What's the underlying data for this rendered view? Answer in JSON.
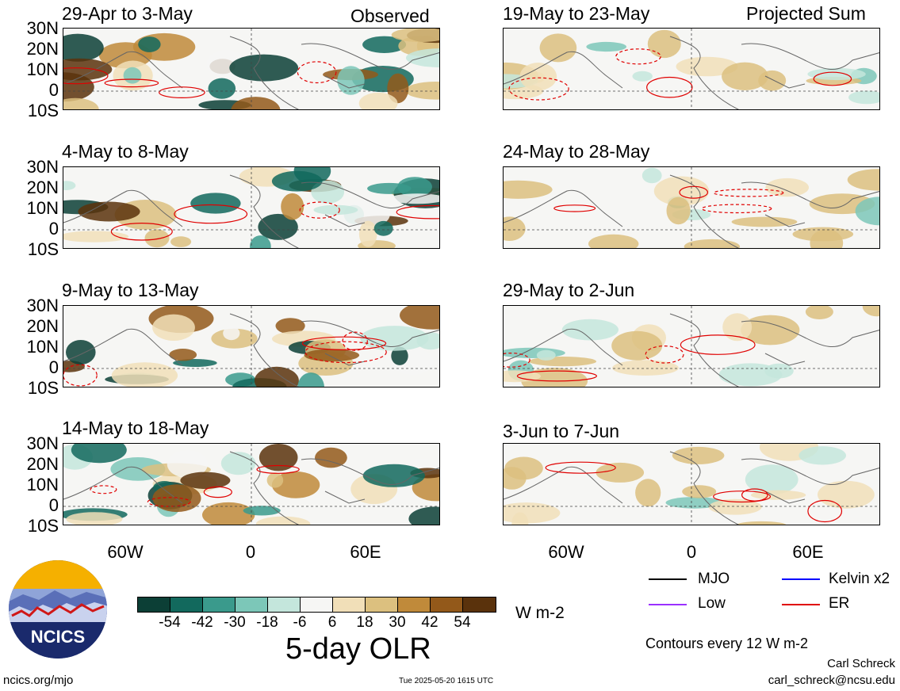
{
  "panels_left": [
    {
      "title": "29-Apr to 3-May",
      "tag": "Observed"
    },
    {
      "title": "4-May to 8-May",
      "tag": ""
    },
    {
      "title": "9-May to 13-May",
      "tag": ""
    },
    {
      "title": "14-May to 18-May",
      "tag": ""
    }
  ],
  "panels_right": [
    {
      "title": "19-May to 23-May",
      "tag": "Projected Sum"
    },
    {
      "title": "24-May to 28-May",
      "tag": ""
    },
    {
      "title": "29-May to 2-Jun",
      "tag": ""
    },
    {
      "title": "3-Jun to 7-Jun",
      "tag": ""
    }
  ],
  "lat_labels": [
    "30N",
    "20N",
    "10N",
    "0",
    "10S"
  ],
  "lon_labels": [
    "60W",
    "0",
    "60E"
  ],
  "colorbar": {
    "colors": [
      "#0c3f36",
      "#12695d",
      "#3a9a8c",
      "#7cc7b8",
      "#c4e6dc",
      "#f6f6f4",
      "#f1dfb8",
      "#dcc07f",
      "#c08a3a",
      "#93591a",
      "#5a320c"
    ],
    "labels": [
      "-54",
      "-42",
      "-30",
      "-18",
      "-6",
      "6",
      "18",
      "30",
      "42",
      "54"
    ],
    "units": "W m-2",
    "title": "5-day OLR"
  },
  "legend": {
    "mjo": "MJO",
    "kelvin": "Kelvin x2",
    "low": "Low",
    "er": "ER",
    "mjo_color": "#000000",
    "kelvin_color": "#0000ff",
    "low_color": "#9b30ff",
    "er_color": "#e00000",
    "contours_note": "Contours every 12 W m-2"
  },
  "logo_text": "NCICS",
  "footer": {
    "url": "ncics.org/mjo",
    "timestamp": "Tue 2025-05-20 1615 UTC",
    "author": "Carl Schreck",
    "email": "carl_schreck@ncsu.edu"
  }
}
